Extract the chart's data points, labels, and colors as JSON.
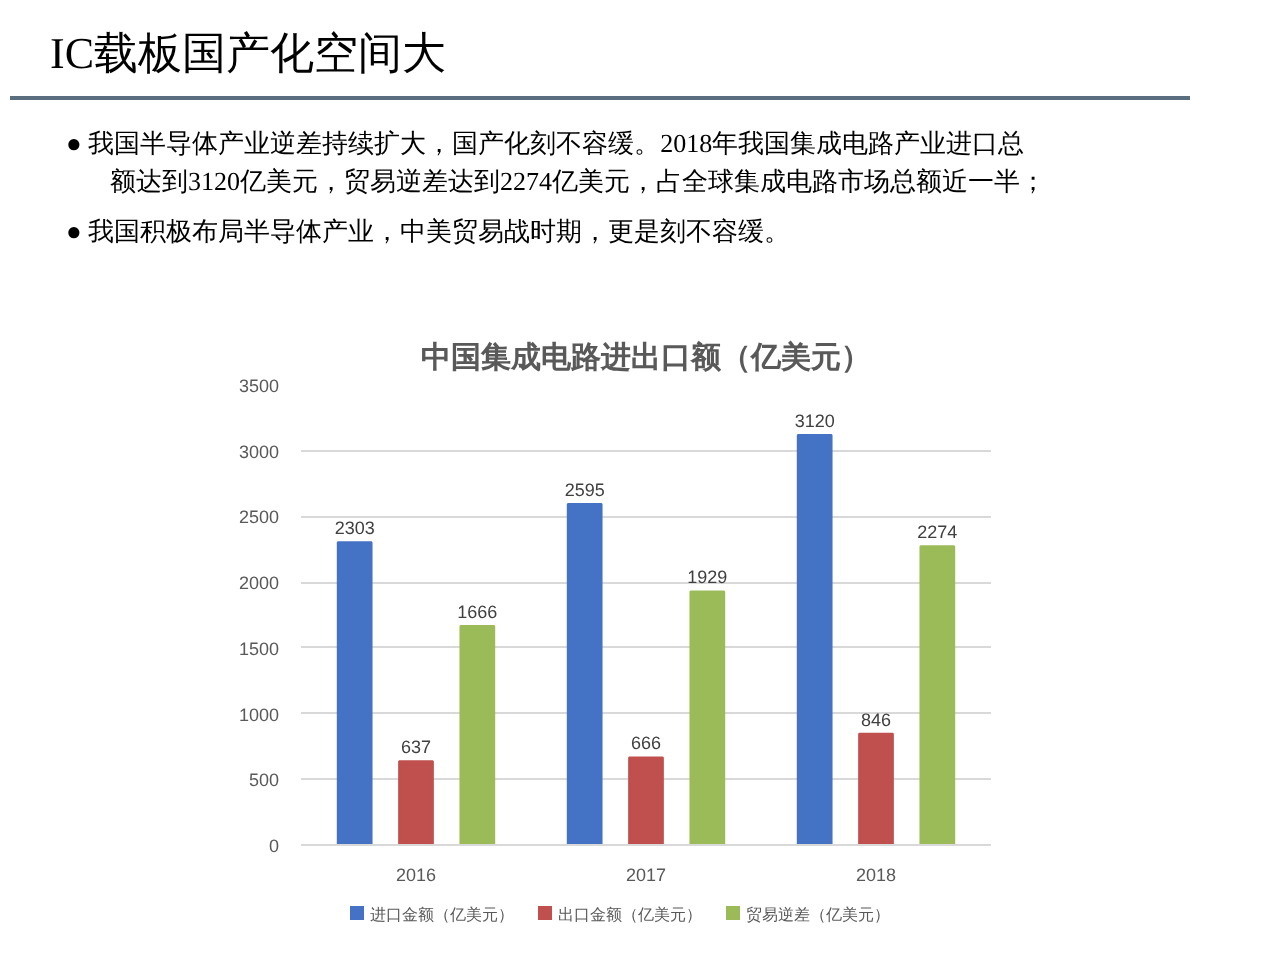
{
  "chart_data": {
    "type": "bar",
    "title": "IC载板国产化空间大",
    "subtitle": "中国集成电路进出口额（亿美元）",
    "annotations": [
      "●  我国半导体产业逆差持续扩大，国产化刻不容缓。2018年我国集成电路产业进口总额达到3120亿美元，贸易逆差达到2274亿美元，占全球集成电路市场总额近一半；",
      "●  我国积极布局半导体产业，中美贸易战时期，更是刻不容缓。"
    ],
    "categories": [
      "2016",
      "2017",
      "2018"
    ],
    "series": [
      {
        "name": "进口金额（亿美元）",
        "color": "#4472c4",
        "values": [
          2303,
          2595,
          3120
        ]
      },
      {
        "name": "出口金额（亿美元）",
        "color": "#c0504d",
        "values": [
          637,
          666,
          846
        ]
      },
      {
        "name": "贸易逆差（亿美元）",
        "color": "#9bbb59",
        "values": [
          1666,
          1929,
          2274
        ]
      }
    ],
    "ylim": [
      0,
      3500
    ],
    "yticks": [
      0,
      500,
      1000,
      1500,
      2000,
      2500,
      3000,
      3500
    ],
    "grid": "y",
    "legend": "bottom",
    "data_labels": true
  }
}
